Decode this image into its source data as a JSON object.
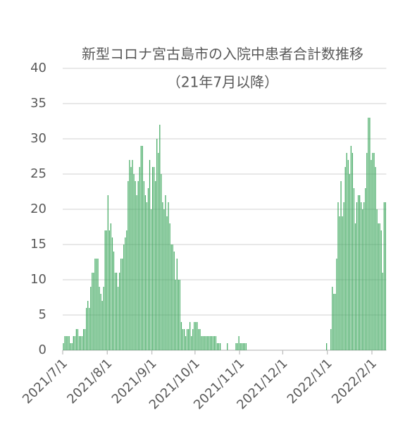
{
  "chart_data": {
    "type": "bar",
    "title": "新型コロナ宮古島市の入院中患者合計数推移",
    "subtitle": "（21年7月以降）",
    "color": "#3fa85f",
    "grid": true,
    "ylim": [
      0,
      40
    ],
    "yticks": [
      0,
      5,
      10,
      15,
      20,
      25,
      30,
      35,
      40
    ],
    "xlim": [
      "2021/7/1",
      "2022/2/11"
    ],
    "xticks": [
      "2021/7/1",
      "2021/8/1",
      "2021/9/1",
      "2021/10/1",
      "2021/11/1",
      "2021/12/1",
      "2022/1/1",
      "2022/2/1"
    ],
    "x": [
      "2021/7/1",
      "2021/7/2",
      "2021/7/3",
      "2021/7/4",
      "2021/7/5",
      "2021/7/6",
      "2021/7/7",
      "2021/7/8",
      "2021/7/9",
      "2021/7/10",
      "2021/7/11",
      "2021/7/12",
      "2021/7/13",
      "2021/7/14",
      "2021/7/15",
      "2021/7/16",
      "2021/7/17",
      "2021/7/18",
      "2021/7/19",
      "2021/7/20",
      "2021/7/21",
      "2021/7/22",
      "2021/7/23",
      "2021/7/24",
      "2021/7/25",
      "2021/7/26",
      "2021/7/27",
      "2021/7/28",
      "2021/7/29",
      "2021/7/30",
      "2021/7/31",
      "2021/8/1",
      "2021/8/2",
      "2021/8/3",
      "2021/8/4",
      "2021/8/5",
      "2021/8/6",
      "2021/8/7",
      "2021/8/8",
      "2021/8/9",
      "2021/8/10",
      "2021/8/11",
      "2021/8/12",
      "2021/8/13",
      "2021/8/14",
      "2021/8/15",
      "2021/8/16",
      "2021/8/17",
      "2021/8/18",
      "2021/8/19",
      "2021/8/20",
      "2021/8/21",
      "2021/8/22",
      "2021/8/23",
      "2021/8/24",
      "2021/8/25",
      "2021/8/26",
      "2021/8/27",
      "2021/8/28",
      "2021/8/29",
      "2021/8/30",
      "2021/8/31",
      "2021/9/1",
      "2021/9/2",
      "2021/9/3",
      "2021/9/4",
      "2021/9/5",
      "2021/9/6",
      "2021/9/7",
      "2021/9/8",
      "2021/9/9",
      "2021/9/10",
      "2021/9/11",
      "2021/9/12",
      "2021/9/13",
      "2021/9/14",
      "2021/9/15",
      "2021/9/16",
      "2021/9/17",
      "2021/9/18",
      "2021/9/19",
      "2021/9/20",
      "2021/9/21",
      "2021/9/22",
      "2021/9/23",
      "2021/9/24",
      "2021/9/25",
      "2021/9/26",
      "2021/9/27",
      "2021/9/28",
      "2021/9/29",
      "2021/9/30",
      "2021/10/1",
      "2021/10/2",
      "2021/10/3",
      "2021/10/4",
      "2021/10/5",
      "2021/10/6",
      "2021/10/7",
      "2021/10/8",
      "2021/10/9",
      "2021/10/10",
      "2021/10/11",
      "2021/10/12",
      "2021/10/13",
      "2021/10/14",
      "2021/10/15",
      "2021/10/16",
      "2021/10/17",
      "2021/10/18",
      "2021/10/19",
      "2021/10/20",
      "2021/10/21",
      "2021/10/22",
      "2021/10/23",
      "2021/10/24",
      "2021/10/25",
      "2021/10/26",
      "2021/10/27",
      "2021/10/28",
      "2021/10/29",
      "2021/10/30",
      "2021/10/31",
      "2021/11/1",
      "2021/11/2",
      "2021/11/3",
      "2021/11/4",
      "2021/11/5",
      "2021/11/6",
      "2021/11/7",
      "2021/11/8",
      "2021/11/9",
      "2021/11/10",
      "2021/11/11",
      "2021/11/12",
      "2021/11/13",
      "2021/11/14",
      "2021/11/15",
      "2021/11/16",
      "2021/11/17",
      "2021/11/18",
      "2021/11/19",
      "2021/11/20",
      "2021/11/21",
      "2021/11/22",
      "2021/11/23",
      "2021/11/24",
      "2021/11/25",
      "2021/11/26",
      "2021/11/27",
      "2021/11/28",
      "2021/11/29",
      "2021/11/30",
      "2021/12/1",
      "2021/12/2",
      "2021/12/3",
      "2021/12/4",
      "2021/12/5",
      "2021/12/6",
      "2021/12/7",
      "2021/12/8",
      "2021/12/9",
      "2021/12/10",
      "2021/12/11",
      "2021/12/12",
      "2021/12/13",
      "2021/12/14",
      "2021/12/15",
      "2021/12/16",
      "2021/12/17",
      "2021/12/18",
      "2021/12/19",
      "2021/12/20",
      "2021/12/21",
      "2021/12/22",
      "2021/12/23",
      "2021/12/24",
      "2021/12/25",
      "2021/12/26",
      "2021/12/27",
      "2021/12/28",
      "2021/12/29",
      "2021/12/30",
      "2021/12/31",
      "2022/1/1",
      "2022/1/2",
      "2022/1/3",
      "2022/1/4",
      "2022/1/5",
      "2022/1/6",
      "2022/1/7",
      "2022/1/8",
      "2022/1/9",
      "2022/1/10",
      "2022/1/11",
      "2022/1/12",
      "2022/1/13",
      "2022/1/14",
      "2022/1/15",
      "2022/1/16",
      "2022/1/17",
      "2022/1/18",
      "2022/1/19",
      "2022/1/20",
      "2022/1/21",
      "2022/1/22",
      "2022/1/23",
      "2022/1/24",
      "2022/1/25",
      "2022/1/26",
      "2022/1/27",
      "2022/1/28",
      "2022/1/29",
      "2022/1/30",
      "2022/1/31",
      "2022/2/1",
      "2022/2/2",
      "2022/2/3",
      "2022/2/4",
      "2022/2/5",
      "2022/2/6",
      "2022/2/7",
      "2022/2/8",
      "2022/2/9",
      "2022/2/10"
    ],
    "values": [
      1,
      2,
      2,
      2,
      2,
      1,
      1,
      2,
      2,
      3,
      3,
      2,
      2,
      2,
      3,
      3,
      6,
      7,
      6,
      9,
      11,
      11,
      13,
      13,
      13,
      9,
      8,
      7,
      9,
      17,
      17,
      22,
      17,
      18,
      16,
      14,
      11,
      11,
      9,
      11,
      13,
      13,
      15,
      16,
      17,
      24,
      27,
      26,
      27,
      25,
      24,
      22,
      24,
      26,
      29,
      29,
      24,
      22,
      21,
      23,
      27,
      20,
      26,
      26,
      24,
      30,
      28,
      32,
      25,
      21,
      20,
      22,
      19,
      21,
      18,
      15,
      15,
      14,
      10,
      13,
      10,
      10,
      4,
      3,
      3,
      2,
      3,
      3,
      4,
      2,
      3,
      4,
      4,
      4,
      3,
      3,
      2,
      2,
      2,
      2,
      2,
      2,
      2,
      2,
      2,
      2,
      2,
      1,
      1,
      1,
      0,
      0,
      0,
      0,
      1,
      0,
      0,
      0,
      0,
      0,
      1,
      1,
      2,
      1,
      1,
      1,
      1,
      1,
      0,
      0,
      0,
      0,
      0,
      0,
      0,
      0,
      0,
      0,
      0,
      0,
      0,
      0,
      0,
      0,
      0,
      0,
      0,
      0,
      0,
      0,
      0,
      0,
      0,
      0,
      0,
      0,
      0,
      0,
      0,
      0,
      0,
      0,
      0,
      0,
      0,
      0,
      0,
      0,
      0,
      0,
      0,
      0,
      0,
      0,
      0,
      0,
      0,
      0,
      0,
      0,
      0,
      0,
      0,
      1,
      0,
      0,
      3,
      9,
      8,
      8,
      13,
      21,
      19,
      24,
      19,
      21,
      26,
      28,
      27,
      25,
      29,
      28,
      23,
      18,
      21,
      22,
      22,
      21,
      20,
      21,
      23,
      28,
      33,
      33,
      27,
      28,
      28,
      26,
      20,
      18,
      18,
      17,
      11,
      21,
      21
    ]
  }
}
